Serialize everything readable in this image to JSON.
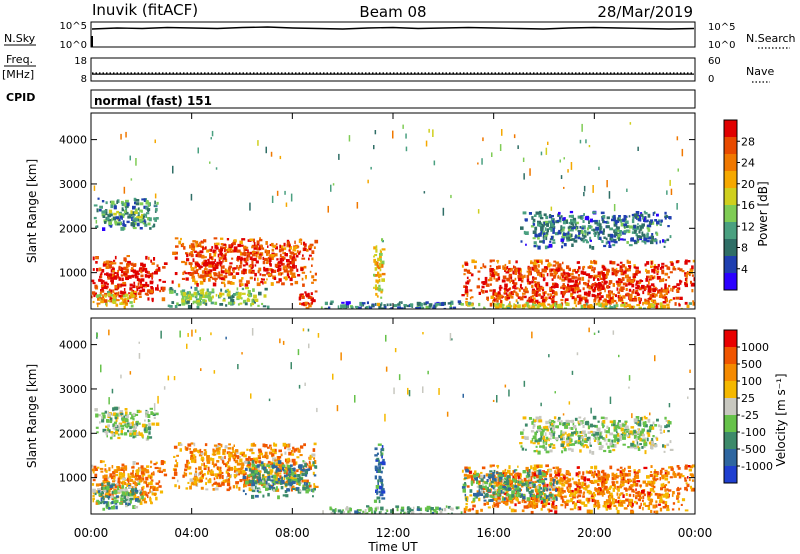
{
  "header": {
    "station": "Inuvik (fitACF)",
    "beam": "Beam 08",
    "date": "28/Mar/2019"
  },
  "top_panels": {
    "nsky": {
      "left_label": "N.Sky",
      "left_ticks": [
        "10^5",
        "10^0"
      ],
      "right_ticks": [
        "10^5",
        "10^0"
      ],
      "right_label": "N.Search",
      "series": [
        {
          "name": "N.Sky",
          "style": "solid",
          "level_log10": [
            3.6,
            3.8,
            3.7,
            3.9,
            3.8,
            3.7,
            3.9,
            4.0,
            3.8,
            3.7,
            3.6,
            3.8,
            3.9,
            3.7,
            3.8,
            3.9,
            3.8,
            3.7,
            3.6,
            3.8,
            3.9,
            3.8,
            3.7,
            3.6,
            3.7
          ]
        },
        {
          "name": "N.Search",
          "style": "dotted",
          "level_log10": [
            0,
            0
          ]
        }
      ]
    },
    "freq": {
      "left_label_1": "Freq.",
      "left_label_2": "[MHz]",
      "left_ticks": [
        "18",
        "8"
      ],
      "right_ticks": [
        "60",
        "0"
      ],
      "right_label": "Nave",
      "series": [
        {
          "name": "Freq.",
          "style": "solid",
          "level": 11.0
        },
        {
          "name": "Nave",
          "style": "dotted",
          "level": 21
        }
      ]
    },
    "cpid": {
      "label": "CPID",
      "text": "normal (fast) 151"
    }
  },
  "chart_data": [
    {
      "type": "heatmap",
      "quantity": "power",
      "ylabel": "Slant Range [km]",
      "yticks": [
        1000,
        2000,
        3000,
        4000
      ],
      "ylim": [
        180,
        4600
      ],
      "xlim_hours": [
        0,
        24
      ],
      "colorbar_label": "Power [dB]",
      "colorbar_ticks": [
        "28",
        "24",
        "20",
        "16",
        "12",
        "8",
        "4"
      ],
      "colorbar_colors": [
        "#2b00ff",
        "#1f3fb0",
        "#2f6e66",
        "#4aa080",
        "#7fcc55",
        "#cfcf1e",
        "#f5a800",
        "#f07800",
        "#e84a00",
        "#e00000"
      ],
      "regions": [
        {
          "t": [
            0.0,
            2.9
          ],
          "r": [
            400,
            1400
          ],
          "level": 0.85
        },
        {
          "t": [
            0.0,
            1.8
          ],
          "r": [
            250,
            600
          ],
          "level": 0.55
        },
        {
          "t": [
            0.1,
            2.6
          ],
          "r": [
            2000,
            2700
          ],
          "level": 0.25
        },
        {
          "t": [
            3.2,
            8.9
          ],
          "r": [
            750,
            1800
          ],
          "level": 0.78
        },
        {
          "t": [
            3.0,
            7.0
          ],
          "r": [
            250,
            700
          ],
          "level": 0.35
        },
        {
          "t": [
            8.2,
            8.9
          ],
          "r": [
            200,
            600
          ],
          "level": 0.8
        },
        {
          "t": [
            9.0,
            14.7
          ],
          "r": [
            180,
            380
          ],
          "level": 0.2
        },
        {
          "t": [
            11.2,
            11.6
          ],
          "r": [
            300,
            1800
          ],
          "level": 0.5
        },
        {
          "t": [
            14.7,
            24.0
          ],
          "r": [
            250,
            1300
          ],
          "level": 0.8
        },
        {
          "t": [
            17.0,
            23.0
          ],
          "r": [
            1600,
            2400
          ],
          "level": 0.2
        },
        {
          "t": [
            14.7,
            24.0
          ],
          "r": [
            180,
            350
          ],
          "level": 0.45
        }
      ]
    },
    {
      "type": "heatmap",
      "quantity": "velocity",
      "ylabel": "Slant Range [km]",
      "yticks": [
        1000,
        2000,
        3000,
        4000
      ],
      "ylim": [
        180,
        4600
      ],
      "xlabel": "Time UT",
      "xticks": [
        "00:00",
        "04:00",
        "08:00",
        "12:00",
        "16:00",
        "20:00",
        "00:00"
      ],
      "xlim_hours": [
        0,
        24
      ],
      "colorbar_label": "Velocity [m s⁻¹]",
      "colorbar_ticks": [
        "1000",
        "500",
        "100",
        "25",
        "-25",
        "-100",
        "-500",
        "-1000"
      ],
      "colorbar_colors": [
        "#1f3fd0",
        "#2e66a0",
        "#3d8a6a",
        "#66c24a",
        "#c8c8c0",
        "#f5b800",
        "#f58a00",
        "#f05500",
        "#e80000"
      ],
      "regions": [
        {
          "t": [
            0.0,
            2.9
          ],
          "r": [
            450,
            1400
          ],
          "level": 0.7
        },
        {
          "t": [
            0.0,
            2.0
          ],
          "r": [
            300,
            900
          ],
          "level": 0.35
        },
        {
          "t": [
            0.1,
            2.6
          ],
          "r": [
            1900,
            2600
          ],
          "level": 0.45
        },
        {
          "t": [
            3.2,
            8.9
          ],
          "r": [
            750,
            1800
          ],
          "level": 0.7
        },
        {
          "t": [
            6.0,
            8.9
          ],
          "r": [
            600,
            1400
          ],
          "level": 0.3
        },
        {
          "t": [
            9.0,
            14.7
          ],
          "r": [
            180,
            380
          ],
          "level": 0.38
        },
        {
          "t": [
            11.2,
            11.6
          ],
          "r": [
            300,
            1800
          ],
          "level": 0.2
        },
        {
          "t": [
            14.7,
            24.0
          ],
          "r": [
            250,
            1300
          ],
          "level": 0.75
        },
        {
          "t": [
            14.7,
            18.5
          ],
          "r": [
            500,
            1200
          ],
          "level": 0.3
        },
        {
          "t": [
            17.0,
            23.0
          ],
          "r": [
            1600,
            2400
          ],
          "level": 0.45
        }
      ]
    }
  ]
}
